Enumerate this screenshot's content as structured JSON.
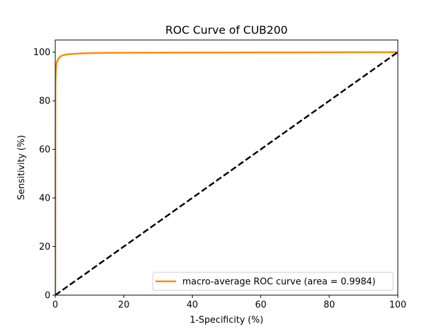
{
  "chart_data": {
    "type": "line",
    "title": "ROC Curve of CUB200",
    "xlabel": "1-Specificity (%)",
    "ylabel": "Sensitivity (%)",
    "xlim": [
      0,
      100
    ],
    "ylim": [
      0,
      105
    ],
    "xticks": [
      0,
      20,
      40,
      60,
      80,
      100
    ],
    "yticks": [
      0,
      20,
      40,
      60,
      80,
      100
    ],
    "grid": false,
    "legend_position": "lower-right",
    "series": [
      {
        "name": "macro-average ROC curve (area = 0.9984)",
        "color": "#ff8c00",
        "style": "solid",
        "x": [
          0,
          0.05,
          0.1,
          0.2,
          0.3,
          0.5,
          0.8,
          1,
          1.5,
          2,
          3,
          5,
          8,
          10,
          15,
          20,
          30,
          50,
          70,
          100
        ],
        "y": [
          0,
          85,
          89,
          92.5,
          94.5,
          96,
          97,
          97.5,
          98.2,
          98.6,
          99,
          99.3,
          99.5,
          99.6,
          99.7,
          99.75,
          99.8,
          99.85,
          99.9,
          100
        ]
      },
      {
        "name": "",
        "color": "#000000",
        "style": "dashed",
        "x": [
          0,
          100
        ],
        "y": [
          0,
          100
        ]
      }
    ]
  }
}
